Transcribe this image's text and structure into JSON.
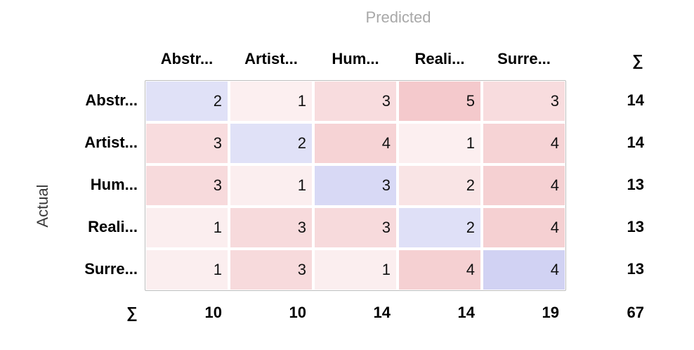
{
  "chart_data": {
    "type": "heatmap",
    "xlabel": "Predicted",
    "ylabel": "Actual",
    "categories_x": [
      "Abstr...",
      "Artist...",
      "Hum...",
      "Reali...",
      "Surre..."
    ],
    "categories_y": [
      "Abstr...",
      "Artist...",
      "Hum...",
      "Reali...",
      "Surre..."
    ],
    "values": [
      [
        2,
        1,
        3,
        5,
        3
      ],
      [
        3,
        2,
        4,
        1,
        4
      ],
      [
        3,
        1,
        3,
        2,
        4
      ],
      [
        1,
        3,
        3,
        2,
        4
      ],
      [
        1,
        3,
        1,
        4,
        4
      ]
    ],
    "row_totals": [
      14,
      14,
      13,
      13,
      13
    ],
    "col_totals": [
      10,
      10,
      14,
      14,
      19
    ],
    "grand_total": 67,
    "sum_symbol": "∑",
    "colors": {
      "diagonal": "#cfd0f3",
      "off_diagonal": "#f3c6c9"
    }
  }
}
